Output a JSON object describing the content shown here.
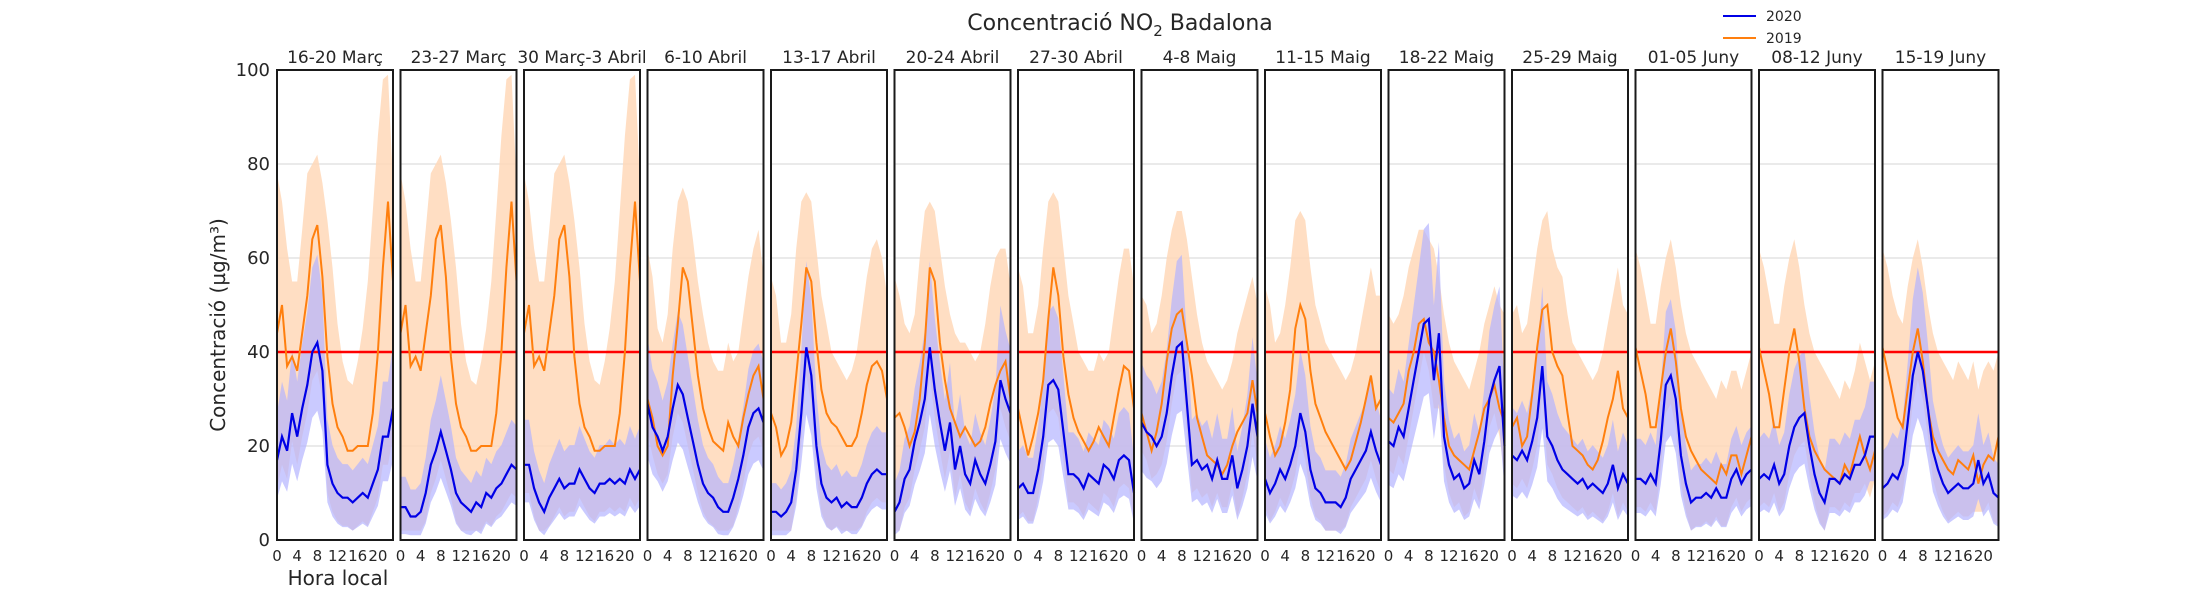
{
  "chart_data": {
    "type": "line",
    "title_prefix": "Concentració NO",
    "title_subscript": "2",
    "title_suffix": " Badalona",
    "ylabel": "Concentració (µg/m³)",
    "xlabel": "Hora local",
    "ylim": [
      0,
      100
    ],
    "yticks": [
      0,
      20,
      40,
      60,
      80,
      100
    ],
    "xlim": [
      0,
      23
    ],
    "xticks": [
      0,
      4,
      8,
      12,
      16,
      20
    ],
    "grid": true,
    "legend_position": "top-right",
    "limit_line": 40,
    "colors": {
      "s2020": "#0000e6",
      "s2020_band": "#b3b3ff",
      "s2019": "#ff7f0e",
      "s2019_band": "#ffd8b8",
      "limit": "#ff0000",
      "grid": "#d6d6d6"
    },
    "series": [
      {
        "name": "2020"
      },
      {
        "name": "2019"
      }
    ],
    "panels": [
      {
        "label": "16-20 Març",
        "y2020": [
          17,
          22,
          19,
          27,
          22,
          28,
          33,
          40,
          42,
          36,
          16,
          12,
          10,
          9,
          9,
          8,
          9,
          10,
          9,
          12,
          15,
          22,
          22,
          28
        ],
        "y2019": [
          44,
          50,
          37,
          39,
          36,
          44,
          52,
          64,
          67,
          56,
          39,
          29,
          24,
          22,
          19,
          19,
          20,
          20,
          20,
          27,
          40,
          58,
          72,
          55
        ],
        "band2019_high": [
          78,
          72,
          62,
          55,
          55,
          66,
          78,
          80,
          82,
          76,
          68,
          58,
          46,
          38,
          34,
          33,
          38,
          45,
          55,
          70,
          86,
          98,
          99,
          76
        ]
      },
      {
        "label": "23-27 Març",
        "y2020": [
          7,
          7,
          5,
          5,
          6,
          10,
          16,
          19,
          23,
          19,
          15,
          10,
          8,
          7,
          6,
          8,
          7,
          10,
          9,
          11,
          12,
          14,
          16,
          15
        ],
        "y2019": [
          44,
          50,
          37,
          39,
          36,
          44,
          52,
          64,
          67,
          56,
          39,
          29,
          24,
          22,
          19,
          19,
          20,
          20,
          20,
          27,
          40,
          58,
          72,
          55
        ],
        "band2019_high": [
          78,
          72,
          62,
          55,
          55,
          66,
          78,
          80,
          82,
          76,
          68,
          58,
          46,
          38,
          34,
          33,
          38,
          45,
          55,
          70,
          86,
          98,
          99,
          76
        ]
      },
      {
        "label": "30 Març-3 Abril",
        "y2020": [
          16,
          16,
          11,
          8,
          6,
          9,
          11,
          13,
          11,
          12,
          12,
          15,
          13,
          11,
          10,
          12,
          12,
          13,
          12,
          13,
          12,
          15,
          13,
          15
        ],
        "y2019": [
          44,
          50,
          37,
          39,
          36,
          44,
          52,
          64,
          67,
          56,
          39,
          29,
          24,
          22,
          19,
          19,
          20,
          20,
          20,
          27,
          40,
          58,
          72,
          55
        ],
        "band2019_high": [
          78,
          72,
          62,
          55,
          55,
          66,
          78,
          80,
          82,
          76,
          68,
          58,
          46,
          38,
          34,
          33,
          38,
          45,
          55,
          70,
          86,
          98,
          99,
          76
        ]
      },
      {
        "label": "6-10 Abril",
        "y2020": [
          29,
          24,
          22,
          19,
          22,
          28,
          33,
          31,
          26,
          21,
          16,
          12,
          10,
          9,
          7,
          6,
          6,
          9,
          13,
          18,
          24,
          27,
          28,
          25
        ],
        "y2019": [
          30,
          26,
          20,
          18,
          20,
          35,
          46,
          58,
          55,
          45,
          35,
          28,
          24,
          21,
          20,
          19,
          25,
          22,
          20,
          26,
          31,
          35,
          37,
          30
        ],
        "band2019_high": [
          62,
          56,
          45,
          42,
          48,
          62,
          72,
          75,
          72,
          64,
          55,
          48,
          42,
          38,
          36,
          36,
          42,
          38,
          40,
          48,
          56,
          62,
          66,
          56
        ]
      },
      {
        "label": "13-17 Abril",
        "y2020": [
          6,
          6,
          5,
          6,
          8,
          15,
          27,
          41,
          35,
          20,
          12,
          9,
          8,
          9,
          7,
          8,
          7,
          7,
          9,
          12,
          14,
          15,
          14,
          14
        ],
        "y2019": [
          27,
          24,
          18,
          20,
          25,
          35,
          46,
          58,
          55,
          42,
          32,
          27,
          25,
          24,
          22,
          20,
          20,
          22,
          27,
          33,
          37,
          38,
          36,
          30
        ],
        "band2019_high": [
          56,
          52,
          42,
          42,
          48,
          62,
          72,
          74,
          72,
          62,
          52,
          46,
          40,
          38,
          36,
          34,
          36,
          40,
          48,
          56,
          62,
          64,
          60,
          52
        ]
      },
      {
        "label": "20-24 Abril",
        "y2020": [
          6,
          8,
          13,
          15,
          21,
          25,
          30,
          41,
          32,
          25,
          19,
          25,
          15,
          20,
          14,
          12,
          17,
          14,
          12,
          16,
          21,
          34,
          30,
          27
        ],
        "y2019": [
          26,
          27,
          24,
          20,
          23,
          30,
          42,
          58,
          55,
          42,
          34,
          28,
          25,
          22,
          24,
          22,
          20,
          21,
          24,
          29,
          33,
          36,
          38,
          30
        ],
        "band2019_high": [
          56,
          52,
          46,
          44,
          48,
          60,
          70,
          72,
          70,
          62,
          54,
          48,
          44,
          42,
          42,
          40,
          38,
          40,
          46,
          54,
          60,
          62,
          62,
          54
        ]
      },
      {
        "label": "27-30 Abril",
        "y2020": [
          11,
          12,
          10,
          10,
          15,
          22,
          33,
          34,
          32,
          23,
          14,
          14,
          13,
          11,
          14,
          13,
          12,
          16,
          15,
          13,
          17,
          18,
          17,
          10
        ],
        "y2019": [
          28,
          23,
          18,
          22,
          27,
          34,
          47,
          58,
          52,
          39,
          31,
          26,
          23,
          21,
          19,
          21,
          24,
          22,
          20,
          26,
          32,
          37,
          36,
          28
        ],
        "band2019_high": [
          58,
          54,
          44,
          44,
          50,
          62,
          72,
          74,
          72,
          62,
          52,
          46,
          40,
          38,
          36,
          36,
          40,
          38,
          40,
          48,
          56,
          62,
          62,
          54
        ]
      },
      {
        "label": "4-8 Maig",
        "y2020": [
          25,
          23,
          22,
          20,
          22,
          27,
          35,
          41,
          42,
          29,
          16,
          17,
          15,
          16,
          13,
          17,
          13,
          13,
          18,
          11,
          15,
          20,
          29,
          22
        ],
        "y2019": [
          27,
          23,
          19,
          23,
          29,
          38,
          45,
          48,
          49,
          42,
          35,
          26,
          22,
          18,
          17,
          16,
          14,
          16,
          20,
          23,
          25,
          27,
          34,
          27
        ],
        "band2019_high": [
          52,
          50,
          44,
          46,
          52,
          60,
          66,
          70,
          70,
          64,
          56,
          48,
          42,
          38,
          36,
          34,
          32,
          34,
          38,
          44,
          48,
          52,
          56,
          50
        ]
      },
      {
        "label": "11-15 Maig",
        "y2020": [
          13,
          10,
          12,
          15,
          13,
          16,
          20,
          27,
          23,
          15,
          11,
          10,
          8,
          8,
          8,
          7,
          9,
          13,
          15,
          17,
          19,
          23,
          19,
          16
        ],
        "y2019": [
          27,
          22,
          18,
          20,
          25,
          32,
          45,
          50,
          47,
          36,
          29,
          26,
          23,
          21,
          19,
          17,
          15,
          17,
          21,
          25,
          30,
          35,
          28,
          30
        ],
        "band2019_high": [
          54,
          50,
          42,
          44,
          50,
          58,
          68,
          70,
          68,
          58,
          50,
          46,
          42,
          40,
          38,
          36,
          34,
          36,
          40,
          46,
          52,
          58,
          52,
          52
        ]
      },
      {
        "label": "18-22 Maig",
        "y2020": [
          21,
          20,
          24,
          22,
          28,
          34,
          40,
          46,
          47,
          34,
          44,
          22,
          16,
          13,
          14,
          11,
          12,
          17,
          14,
          21,
          30,
          34,
          37,
          20
        ],
        "y2019": [
          26,
          25,
          27,
          29,
          36,
          40,
          46,
          47,
          42,
          40,
          34,
          26,
          20,
          18,
          17,
          16,
          15,
          19,
          23,
          28,
          30,
          33,
          28,
          25
        ],
        "band2019_high": [
          48,
          46,
          48,
          52,
          58,
          62,
          66,
          66,
          64,
          62,
          56,
          48,
          42,
          38,
          36,
          34,
          32,
          36,
          40,
          46,
          50,
          54,
          50,
          48
        ]
      },
      {
        "label": "25-29 Maig",
        "y2020": [
          18,
          17,
          19,
          17,
          21,
          26,
          37,
          22,
          20,
          17,
          15,
          14,
          13,
          12,
          13,
          11,
          12,
          11,
          10,
          12,
          16,
          11,
          14,
          12
        ],
        "y2019": [
          24,
          26,
          20,
          22,
          31,
          41,
          49,
          50,
          40,
          37,
          35,
          27,
          20,
          19,
          18,
          16,
          15,
          17,
          21,
          26,
          30,
          36,
          28,
          26
        ],
        "band2019_high": [
          48,
          50,
          44,
          46,
          54,
          62,
          68,
          70,
          62,
          58,
          56,
          48,
          42,
          40,
          38,
          36,
          34,
          36,
          40,
          46,
          52,
          58,
          50,
          48
        ]
      },
      {
        "label": "01-05 Juny",
        "y2020": [
          13,
          13,
          12,
          14,
          12,
          21,
          33,
          35,
          30,
          18,
          12,
          8,
          9,
          9,
          10,
          9,
          11,
          9,
          9,
          13,
          15,
          12,
          14,
          15
        ],
        "y2019": [
          41,
          36,
          31,
          24,
          24,
          32,
          40,
          45,
          38,
          28,
          22,
          19,
          17,
          15,
          14,
          13,
          12,
          16,
          14,
          18,
          18,
          14,
          18,
          22
        ],
        "band2019_high": [
          62,
          58,
          52,
          46,
          46,
          54,
          60,
          64,
          58,
          50,
          44,
          40,
          38,
          36,
          34,
          32,
          30,
          34,
          32,
          36,
          36,
          32,
          36,
          40
        ]
      },
      {
        "label": "08-12 Juny",
        "y2020": [
          13,
          14,
          13,
          16,
          12,
          14,
          20,
          24,
          26,
          27,
          20,
          14,
          10,
          8,
          13,
          13,
          12,
          14,
          13,
          16,
          16,
          18,
          22,
          22
        ],
        "y2019": [
          41,
          36,
          31,
          24,
          24,
          32,
          40,
          45,
          38,
          28,
          22,
          19,
          17,
          15,
          14,
          13,
          12,
          16,
          14,
          18,
          22,
          18,
          15,
          19
        ],
        "band2019_high": [
          62,
          58,
          52,
          46,
          46,
          54,
          60,
          64,
          58,
          50,
          44,
          40,
          38,
          36,
          34,
          32,
          30,
          34,
          32,
          36,
          42,
          38,
          34,
          38
        ]
      },
      {
        "label": "15-19 Juny",
        "y2020": [
          11,
          12,
          14,
          13,
          16,
          25,
          35,
          40,
          36,
          28,
          19,
          15,
          12,
          10,
          11,
          12,
          11,
          11,
          12,
          17,
          12,
          14,
          10,
          9
        ],
        "y2019": [
          41,
          36,
          31,
          26,
          24,
          32,
          40,
          45,
          38,
          28,
          22,
          19,
          17,
          15,
          14,
          17,
          16,
          15,
          18,
          12,
          16,
          18,
          17,
          22
        ],
        "band2019_high": [
          62,
          58,
          52,
          48,
          46,
          54,
          60,
          64,
          58,
          50,
          44,
          40,
          38,
          36,
          34,
          38,
          36,
          34,
          38,
          32,
          36,
          38,
          36,
          40
        ]
      }
    ]
  }
}
